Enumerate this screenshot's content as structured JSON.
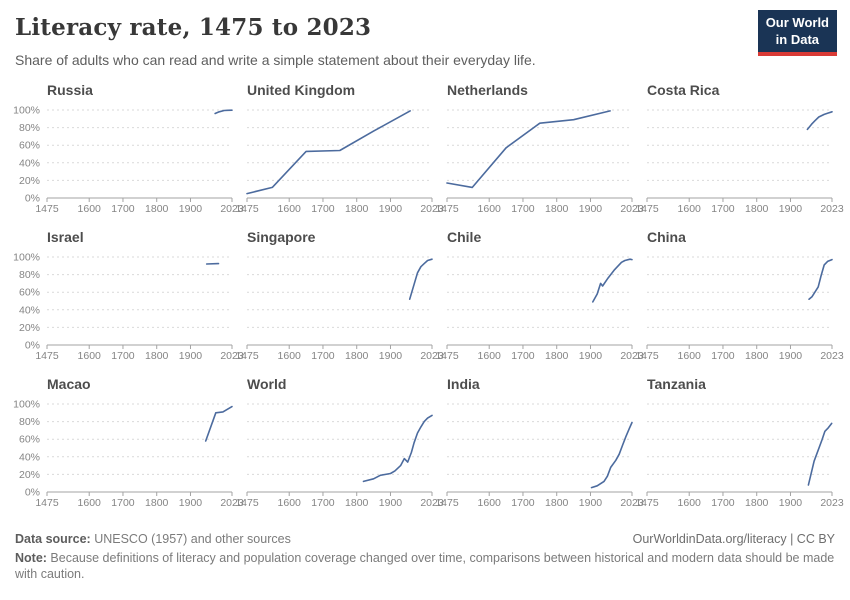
{
  "header": {
    "title": "Literacy rate, 1475 to 2023",
    "subtitle": "Share of adults who can read and write a simple statement about their everyday life."
  },
  "logo": {
    "line1": "Our World",
    "line2": "in Data"
  },
  "colors": {
    "line": "#4c6b9e",
    "logo_bg": "#1a3455",
    "logo_bar": "#d93a35",
    "grid": "#d9d9d9",
    "axis": "#a3a3a3",
    "tick_label": "#858585",
    "chart_title": "#4d4d4d"
  },
  "axis": {
    "x_ticks": [
      1475,
      1600,
      1700,
      1800,
      1900,
      2023
    ],
    "y_ticks": [
      0,
      20,
      40,
      60,
      80,
      100
    ],
    "y_tick_suffix": "%",
    "grid_style": "dashed-horizontal",
    "y_labels_first_column_only": true
  },
  "chart_data": [
    {
      "type": "line",
      "title": "Russia",
      "xlim": [
        1475,
        2023
      ],
      "ylim": [
        0,
        100
      ],
      "points": [
        [
          1973,
          96
        ],
        [
          1985,
          98
        ],
        [
          2000,
          99.4
        ],
        [
          2010,
          99.7
        ],
        [
          2023,
          99.8
        ]
      ]
    },
    {
      "type": "line",
      "title": "United Kingdom",
      "xlim": [
        1475,
        2023
      ],
      "ylim": [
        0,
        100
      ],
      "points": [
        [
          1475,
          5
        ],
        [
          1550,
          12
        ],
        [
          1650,
          53
        ],
        [
          1750,
          54
        ],
        [
          1850,
          76
        ],
        [
          1958,
          99
        ]
      ]
    },
    {
      "type": "line",
      "title": "Netherlands",
      "xlim": [
        1475,
        2023
      ],
      "ylim": [
        0,
        100
      ],
      "points": [
        [
          1475,
          17
        ],
        [
          1550,
          12
        ],
        [
          1650,
          57
        ],
        [
          1750,
          85
        ],
        [
          1850,
          89
        ],
        [
          1958,
          99
        ]
      ]
    },
    {
      "type": "line",
      "title": "Costa Rica",
      "xlim": [
        1475,
        2023
      ],
      "ylim": [
        0,
        100
      ],
      "points": [
        [
          1950,
          78
        ],
        [
          1963,
          84
        ],
        [
          1973,
          88
        ],
        [
          1984,
          92
        ],
        [
          2000,
          95
        ],
        [
          2011,
          96.5
        ],
        [
          2023,
          98
        ]
      ]
    },
    {
      "type": "line",
      "title": "Israel",
      "xlim": [
        1475,
        2023
      ],
      "ylim": [
        0,
        100
      ],
      "points": [
        [
          1948,
          92
        ],
        [
          1983,
          92.5
        ]
      ]
    },
    {
      "type": "line",
      "title": "Singapore",
      "xlim": [
        1475,
        2023
      ],
      "ylim": [
        0,
        100
      ],
      "points": [
        [
          1957,
          52
        ],
        [
          1970,
          69
        ],
        [
          1980,
          82
        ],
        [
          1990,
          89
        ],
        [
          2000,
          92.5
        ],
        [
          2010,
          96
        ],
        [
          2023,
          97.5
        ]
      ]
    },
    {
      "type": "line",
      "title": "Chile",
      "xlim": [
        1475,
        2023
      ],
      "ylim": [
        0,
        100
      ],
      "points": [
        [
          1907,
          49
        ],
        [
          1920,
          58
        ],
        [
          1930,
          70
        ],
        [
          1936,
          67
        ],
        [
          1952,
          76
        ],
        [
          1970,
          85
        ],
        [
          1982,
          90
        ],
        [
          1992,
          94
        ],
        [
          2002,
          96
        ],
        [
          2017,
          97.5
        ],
        [
          2023,
          97
        ]
      ]
    },
    {
      "type": "line",
      "title": "China",
      "xlim": [
        1475,
        2023
      ],
      "ylim": [
        0,
        100
      ],
      "points": [
        [
          1955,
          52
        ],
        [
          1964,
          55
        ],
        [
          1982,
          66
        ],
        [
          1990,
          78
        ],
        [
          2000,
          91
        ],
        [
          2010,
          95
        ],
        [
          2023,
          97
        ]
      ]
    },
    {
      "type": "line",
      "title": "Macao",
      "xlim": [
        1475,
        2023
      ],
      "ylim": [
        0,
        100
      ],
      "points": [
        [
          1945,
          58
        ],
        [
          1975,
          90
        ],
        [
          1996,
          91
        ],
        [
          2023,
          97
        ]
      ]
    },
    {
      "type": "line",
      "title": "World",
      "xlim": [
        1475,
        2023
      ],
      "ylim": [
        0,
        100
      ],
      "points": [
        [
          1820,
          12
        ],
        [
          1850,
          15
        ],
        [
          1870,
          19
        ],
        [
          1900,
          21
        ],
        [
          1913,
          24
        ],
        [
          1930,
          30
        ],
        [
          1941,
          38
        ],
        [
          1951,
          34
        ],
        [
          1962,
          45
        ],
        [
          1970,
          56
        ],
        [
          1980,
          67
        ],
        [
          1990,
          74
        ],
        [
          2000,
          80
        ],
        [
          2010,
          84
        ],
        [
          2023,
          87
        ]
      ]
    },
    {
      "type": "line",
      "title": "India",
      "xlim": [
        1475,
        2023
      ],
      "ylim": [
        0,
        100
      ],
      "points": [
        [
          1903,
          5
        ],
        [
          1920,
          7
        ],
        [
          1940,
          12
        ],
        [
          1950,
          18
        ],
        [
          1960,
          28
        ],
        [
          1975,
          36
        ],
        [
          1985,
          43
        ],
        [
          1995,
          53
        ],
        [
          2005,
          63
        ],
        [
          2015,
          72
        ],
        [
          2023,
          79
        ]
      ]
    },
    {
      "type": "line",
      "title": "Tanzania",
      "xlim": [
        1475,
        2023
      ],
      "ylim": [
        0,
        100
      ],
      "points": [
        [
          1953,
          8
        ],
        [
          1970,
          35
        ],
        [
          1993,
          59
        ],
        [
          2002,
          69
        ],
        [
          2012,
          73
        ],
        [
          2022,
          78
        ]
      ]
    }
  ],
  "footer": {
    "datasource_label": "Data source:",
    "datasource_text": " UNESCO (1957) and other sources",
    "link": "OurWorldinData.org/literacy | CC BY",
    "note_label": "Note:",
    "note_text": " Because definitions of literacy and population coverage changed over time, comparisons between historical and modern data should be made with caution."
  }
}
